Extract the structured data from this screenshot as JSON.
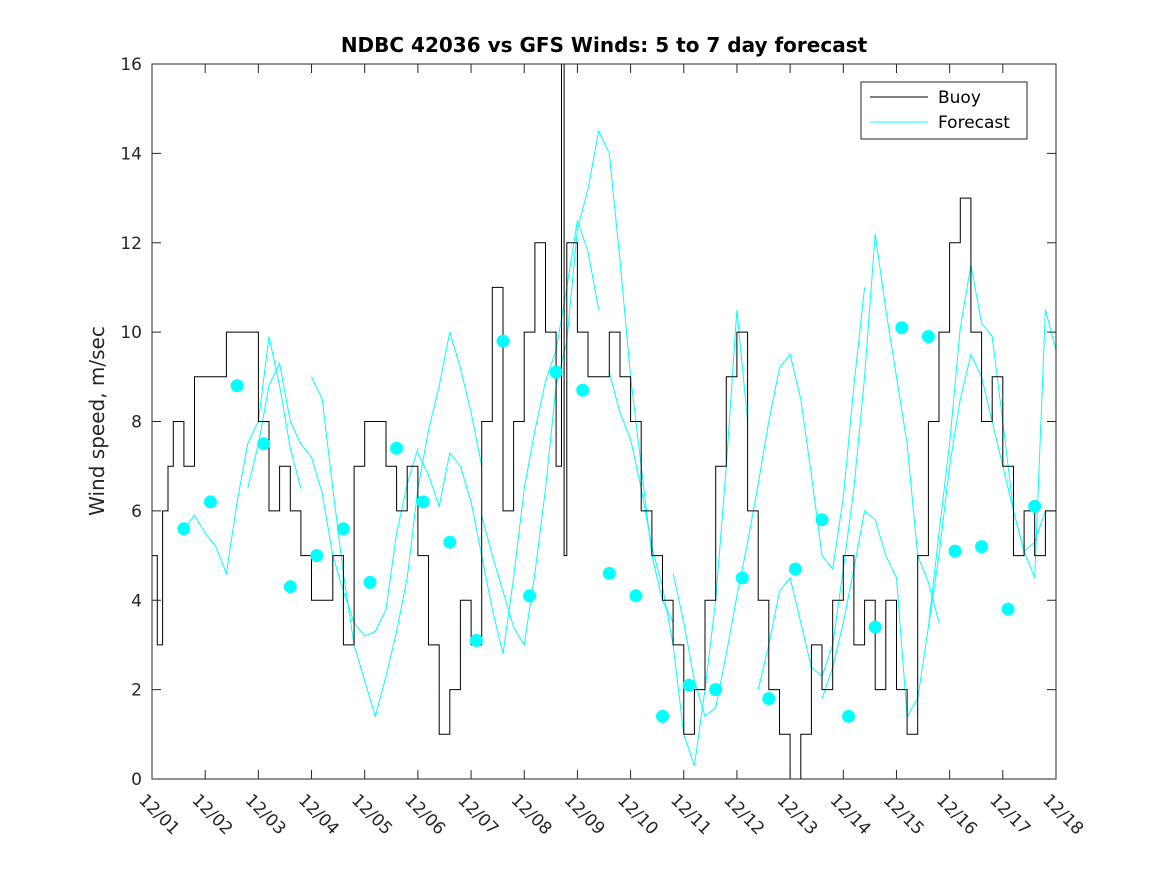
{
  "chart_data": {
    "type": "line",
    "title": "NDBC 42036 vs GFS Winds: 5 to 7 day forecast",
    "xlabel": "",
    "ylabel": "Wind speed, m/sec",
    "ylim": [
      0,
      16
    ],
    "xlim": [
      0,
      17
    ],
    "yticks": [
      0,
      2,
      4,
      6,
      8,
      10,
      12,
      14,
      16
    ],
    "x_tick_labels": [
      "12/01",
      "12/02",
      "12/03",
      "12/04",
      "12/05",
      "12/06",
      "12/07",
      "12/08",
      "12/09",
      "12/10",
      "12/11",
      "12/12",
      "12/13",
      "12/14",
      "12/15",
      "12/16",
      "12/17",
      "12/18"
    ],
    "legend": {
      "location": "top-right",
      "entries": [
        "Buoy",
        "Forecast"
      ]
    },
    "colors": {
      "buoy": "#000000",
      "forecast": "#00ffff",
      "axis": "#262626"
    },
    "series": [
      {
        "name": "Buoy",
        "style": "black-line",
        "x": [
          0.0,
          0.1,
          0.2,
          0.3,
          0.4,
          0.6,
          0.8,
          1.0,
          1.2,
          1.4,
          1.6,
          1.8,
          2.0,
          2.2,
          2.4,
          2.6,
          2.8,
          3.0,
          3.2,
          3.4,
          3.6,
          3.8,
          4.0,
          4.2,
          4.4,
          4.6,
          4.8,
          5.0,
          5.2,
          5.4,
          5.6,
          5.8,
          6.0,
          6.2,
          6.4,
          6.6,
          6.8,
          7.0,
          7.2,
          7.4,
          7.6,
          7.7,
          7.75,
          7.8,
          8.0,
          8.2,
          8.4,
          8.6,
          8.8,
          9.0,
          9.2,
          9.4,
          9.6,
          9.8,
          10.0,
          10.2,
          10.4,
          10.6,
          10.8,
          11.0,
          11.2,
          11.4,
          11.6,
          11.8,
          12.0,
          12.2,
          12.4,
          12.6,
          12.8,
          13.0,
          13.2,
          13.4,
          13.6,
          13.8,
          14.0,
          14.2,
          14.4,
          14.6,
          14.8,
          15.0,
          15.2,
          15.4,
          15.6,
          15.8,
          16.0,
          16.2,
          16.4,
          16.6,
          16.8,
          17.0
        ],
        "y": [
          5,
          3,
          6,
          7,
          8,
          7,
          9,
          9,
          9,
          10,
          10,
          10,
          8,
          6,
          7,
          6,
          5,
          4,
          4,
          5,
          3,
          7,
          8,
          8,
          7,
          6,
          7,
          5,
          3,
          1,
          2,
          4,
          3,
          8,
          11,
          6,
          8,
          10,
          12,
          10,
          7,
          16,
          5,
          12,
          10,
          9,
          9,
          10,
          9,
          8,
          6,
          5,
          4,
          3,
          1,
          2,
          4,
          7,
          9,
          10,
          6,
          4,
          2,
          1,
          0,
          1,
          3,
          2,
          4,
          5,
          3,
          4,
          2,
          4,
          2,
          1,
          5,
          8,
          10,
          12,
          13,
          10,
          8,
          9,
          7,
          5,
          6,
          5,
          6,
          8
        ]
      }
    ],
    "forecast_runs": [
      {
        "name": "Forecast",
        "x": [
          0.6,
          0.8,
          1.0,
          1.2,
          1.4,
          1.6,
          1.8,
          2.0,
          2.2,
          2.4,
          2.6,
          2.8
        ],
        "y": [
          5.6,
          5.9,
          5.5,
          5.2,
          4.6,
          6.2,
          7.5,
          8.0,
          9.9,
          8.8,
          7.4,
          6.5
        ]
      },
      {
        "name": "Forecast",
        "x": [
          1.8,
          2.0,
          2.2,
          2.4,
          2.6,
          2.8,
          3.0,
          3.2,
          3.4,
          3.6,
          3.8,
          4.0,
          4.2,
          4.4,
          4.6,
          4.8,
          5.0
        ],
        "y": [
          6.5,
          7.5,
          8.8,
          9.3,
          8.0,
          7.5,
          7.2,
          6.4,
          5.0,
          4.2,
          3.5,
          3.2,
          3.3,
          3.8,
          5.5,
          6.6,
          7.4
        ]
      },
      {
        "name": "Forecast",
        "x": [
          3.0,
          3.2,
          3.4,
          3.6,
          3.8,
          4.0,
          4.2,
          4.4,
          4.6,
          4.8,
          5.0,
          5.2,
          5.4,
          5.6,
          5.8,
          6.0,
          6.2
        ],
        "y": [
          9.0,
          8.5,
          6.5,
          4.6,
          3.0,
          2.2,
          1.4,
          2.3,
          3.3,
          4.5,
          6.5,
          7.8,
          8.8,
          10.0,
          9.2,
          8.2,
          7.0
        ]
      },
      {
        "name": "Forecast",
        "x": [
          5.0,
          5.2,
          5.4,
          5.6,
          5.8,
          6.0,
          6.2,
          6.4,
          6.6,
          6.8,
          7.0,
          7.2,
          7.4,
          7.6,
          7.8,
          8.0,
          8.2,
          8.4
        ],
        "y": [
          7.3,
          6.8,
          6.1,
          7.3,
          7.0,
          6.2,
          5.0,
          3.8,
          2.8,
          4.5,
          6.5,
          7.8,
          8.9,
          9.6,
          11.0,
          12.5,
          11.8,
          10.5
        ]
      },
      {
        "name": "Forecast",
        "x": [
          6.2,
          6.4,
          6.6,
          6.8,
          7.0,
          7.2,
          7.4,
          7.6,
          7.8,
          8.0,
          8.2,
          8.4,
          8.6,
          8.8,
          9.0,
          9.2,
          9.4,
          9.6,
          9.8
        ],
        "y": [
          5.9,
          5.0,
          4.2,
          3.4,
          3.0,
          4.6,
          6.5,
          8.8,
          9.8,
          12.3,
          13.2,
          14.5,
          14.0,
          11.6,
          9.0,
          7.0,
          5.0,
          4.0,
          3.5
        ]
      },
      {
        "name": "Forecast",
        "x": [
          8.6,
          8.8,
          9.0,
          9.2,
          9.4,
          9.6,
          9.8,
          10.0,
          10.2,
          10.4,
          10.6,
          10.8,
          11.0,
          11.2
        ],
        "y": [
          9.1,
          8.2,
          7.6,
          6.5,
          5.2,
          4.3,
          3.0,
          1.0,
          0.3,
          2.0,
          4.0,
          7.0,
          10.5,
          8.0
        ]
      },
      {
        "name": "Forecast",
        "x": [
          9.8,
          10.0,
          10.2,
          10.4,
          10.6,
          10.8,
          11.0,
          11.2,
          11.4,
          11.6,
          11.8,
          12.0,
          12.2,
          12.4,
          12.6,
          12.8,
          13.0,
          13.2,
          13.4
        ],
        "y": [
          4.6,
          3.5,
          2.2,
          1.4,
          1.6,
          2.8,
          4.1,
          5.3,
          6.6,
          8.0,
          9.2,
          9.5,
          8.5,
          6.8,
          5.0,
          4.7,
          6.3,
          8.8,
          11.0
        ]
      },
      {
        "name": "Forecast",
        "x": [
          11.4,
          11.6,
          11.8,
          12.0,
          12.2,
          12.4,
          12.6,
          12.8,
          13.0,
          13.2,
          13.4,
          13.6,
          13.8,
          14.0,
          14.2,
          14.4,
          14.6,
          14.8
        ],
        "y": [
          2.0,
          3.0,
          4.2,
          4.5,
          3.5,
          2.5,
          2.3,
          3.0,
          4.7,
          6.5,
          9.0,
          12.2,
          10.5,
          9.0,
          7.5,
          5.0,
          4.4,
          3.5
        ]
      },
      {
        "name": "Forecast",
        "x": [
          12.6,
          12.8,
          13.0,
          13.2,
          13.4,
          13.6,
          13.8,
          14.0,
          14.2,
          14.4,
          14.6,
          14.8,
          15.0,
          15.2,
          15.4,
          15.6,
          15.8,
          16.0,
          16.2,
          16.4,
          16.6,
          16.8
        ],
        "y": [
          1.8,
          2.5,
          3.5,
          4.7,
          6.0,
          5.8,
          5.0,
          4.5,
          1.4,
          1.8,
          3.4,
          5.5,
          7.5,
          10.1,
          11.5,
          10.2,
          9.9,
          8.0,
          6.0,
          5.1,
          5.3,
          6.0
        ]
      },
      {
        "name": "Forecast",
        "x": [
          14.6,
          14.8,
          15.0,
          15.2,
          15.4,
          15.6,
          15.8,
          16.0,
          16.2,
          16.4,
          16.6,
          16.8,
          17.0
        ],
        "y": [
          3.4,
          5.0,
          7.0,
          8.5,
          9.5,
          9.0,
          8.0,
          7.0,
          6.0,
          5.1,
          4.5,
          10.5,
          9.6
        ]
      }
    ],
    "forecast_markers": {
      "x": [
        0.6,
        1.1,
        1.6,
        2.1,
        2.6,
        3.1,
        3.6,
        4.1,
        4.6,
        5.1,
        5.6,
        6.1,
        6.6,
        7.1,
        7.6,
        8.1,
        8.6,
        9.1,
        9.6,
        10.1,
        10.6,
        11.1,
        11.6,
        12.1,
        12.6,
        13.1,
        13.6,
        14.1,
        14.6,
        15.1,
        15.6,
        16.1,
        16.6
      ],
      "y": [
        5.6,
        6.2,
        8.8,
        7.5,
        4.3,
        5.0,
        5.6,
        4.4,
        7.4,
        6.2,
        5.3,
        3.1,
        9.8,
        4.1,
        9.1,
        8.7,
        4.6,
        4.1,
        1.4,
        2.1,
        2.0,
        4.5,
        1.8,
        4.7,
        5.8,
        1.4,
        3.4,
        10.1,
        9.9,
        5.1,
        5.2,
        3.8,
        6.1
      ]
    }
  }
}
